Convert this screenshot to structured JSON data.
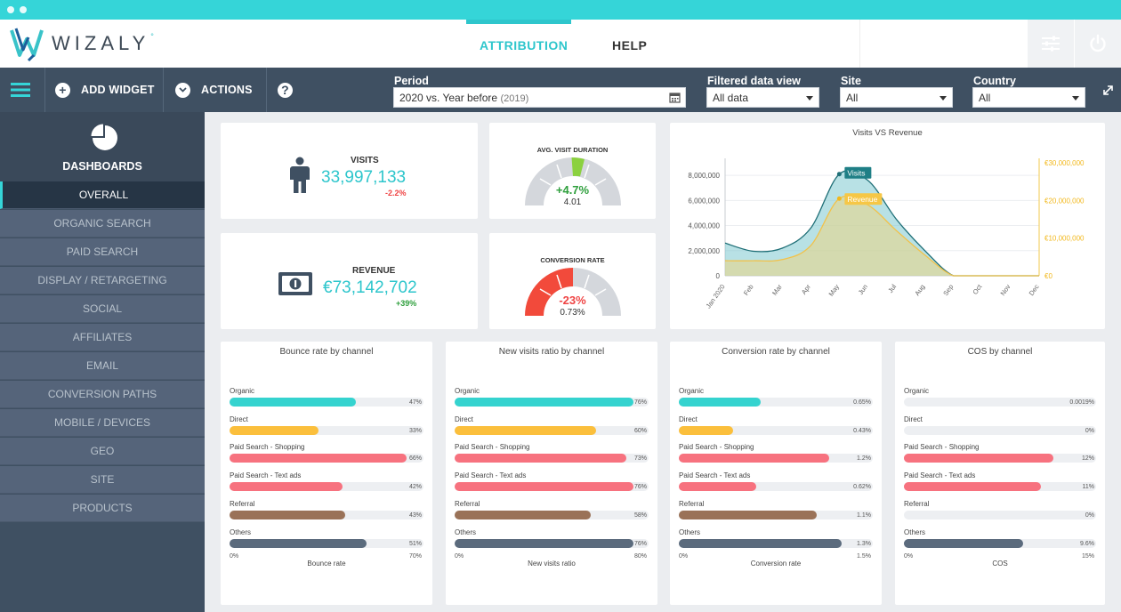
{
  "app": {
    "logo_text": "WIZALY",
    "logo_mark": "°"
  },
  "nav": {
    "items": [
      {
        "label": "ATTRIBUTION",
        "active": true
      },
      {
        "label": "HELP",
        "active": false
      }
    ]
  },
  "toolbar": {
    "add_widget": "ADD WIDGET",
    "actions": "ACTIONS"
  },
  "filters": {
    "period": {
      "label": "Period",
      "value": "2020 vs. Year before",
      "extra": "(2019)"
    },
    "data_view": {
      "label": "Filtered data view",
      "value": "All data"
    },
    "site": {
      "label": "Site",
      "value": "All"
    },
    "country": {
      "label": "Country",
      "value": "All"
    }
  },
  "sidebar": {
    "title": "DASHBOARDS",
    "items": [
      {
        "label": "OVERALL",
        "active": true
      },
      {
        "label": "ORGANIC SEARCH"
      },
      {
        "label": "PAID SEARCH"
      },
      {
        "label": "DISPLAY / RETARGETING"
      },
      {
        "label": "SOCIAL"
      },
      {
        "label": "AFFILIATES"
      },
      {
        "label": "EMAIL"
      },
      {
        "label": "CONVERSION PATHS"
      },
      {
        "label": "MOBILE / DEVICES"
      },
      {
        "label": "GEO"
      },
      {
        "label": "SITE"
      },
      {
        "label": "PRODUCTS"
      }
    ]
  },
  "kpis": {
    "visits": {
      "label": "VISITS",
      "value": "33,997,133",
      "delta": "-2.2%"
    },
    "revenue": {
      "label": "REVENUE",
      "value": "€73,142,702",
      "delta": "+39%"
    },
    "avg_visit_duration": {
      "title": "AVG. VISIT DURATION",
      "delta": "+4.7%",
      "value": "4.01"
    },
    "conversion_rate": {
      "title": "CONVERSION RATE",
      "delta": "-23%",
      "value": "0.73%"
    }
  },
  "colors": {
    "accent": "#2ec6cc",
    "positive": "#2e9f3c",
    "negative": "#ef4444",
    "organic": "#35d3cf",
    "direct": "#fbbf3c",
    "paid_shopping": "#f7727f",
    "paid_text": "#f7727f",
    "referral": "#9a7258",
    "others": "#5b6b7d",
    "revenue_line": "#f7c54a"
  },
  "chart_data": [
    {
      "type": "area",
      "title": "Visits VS Revenue",
      "categories": [
        "Jan 2020",
        "Feb",
        "Mar",
        "Apr",
        "May",
        "Jun",
        "Jul",
        "Aug",
        "Sep",
        "Oct",
        "Nov",
        "Dec"
      ],
      "y_ticks": [
        "0",
        "2,000,000",
        "4,000,000",
        "6,000,000",
        "8,000,000"
      ],
      "y2_ticks": [
        "€0",
        "€10,000,000",
        "€20,000,000",
        "€30,000,000"
      ],
      "ylim": [
        0,
        9000000
      ],
      "y2lim": [
        0,
        30000000
      ],
      "series": [
        {
          "name": "Visits",
          "axis": "left",
          "values": [
            2600000,
            1950000,
            2200000,
            3800000,
            8100000,
            7600000,
            4500000,
            2000000,
            0,
            0,
            0,
            0
          ]
        },
        {
          "name": "Revenue",
          "axis": "right",
          "values": [
            4000000,
            4000000,
            4300000,
            8000000,
            20500000,
            18800000,
            12000000,
            5500000,
            0,
            0,
            0,
            0
          ]
        }
      ]
    },
    {
      "type": "bar",
      "title": "Bounce rate by channel",
      "xlabel": "Bounce rate",
      "xlim": [
        0,
        70
      ],
      "axis_min_label": "0%",
      "axis_max_label": "70%",
      "categories": [
        "Organic",
        "Direct",
        "Paid Search - Shopping",
        "Paid Search - Text ads",
        "Referral",
        "Others"
      ],
      "values": [
        47,
        33,
        66,
        42,
        43,
        51
      ],
      "value_labels": [
        "47%",
        "33%",
        "66%",
        "42%",
        "43%",
        "51%"
      ]
    },
    {
      "type": "bar",
      "title": "New visits ratio by channel",
      "xlabel": "New visits ratio",
      "xlim": [
        0,
        80
      ],
      "axis_min_label": "0%",
      "axis_max_label": "80%",
      "categories": [
        "Organic",
        "Direct",
        "Paid Search - Shopping",
        "Paid Search - Text ads",
        "Referral",
        "Others"
      ],
      "values": [
        76,
        60,
        73,
        76,
        58,
        76
      ],
      "value_labels": [
        "76%",
        "60%",
        "73%",
        "76%",
        "58%",
        "76%"
      ]
    },
    {
      "type": "bar",
      "title": "Conversion rate by channel",
      "xlabel": "Conversion rate",
      "xlim": [
        0,
        1.5
      ],
      "axis_min_label": "0%",
      "axis_max_label": "1.5%",
      "categories": [
        "Organic",
        "Direct",
        "Paid Search - Shopping",
        "Paid Search - Text ads",
        "Referral",
        "Others"
      ],
      "values": [
        0.65,
        0.43,
        1.2,
        0.62,
        1.1,
        1.3
      ],
      "value_labels": [
        "0.65%",
        "0.43%",
        "1.2%",
        "0.62%",
        "1.1%",
        "1.3%"
      ]
    },
    {
      "type": "bar",
      "title": "COS by channel",
      "xlabel": "COS",
      "xlim": [
        0,
        15
      ],
      "axis_min_label": "0%",
      "axis_max_label": "15%",
      "categories": [
        "Organic",
        "Direct",
        "Paid Search - Shopping",
        "Paid Search - Text ads",
        "Referral",
        "Others"
      ],
      "values": [
        0.0019,
        0,
        12,
        11,
        0,
        9.6
      ],
      "value_labels": [
        "0.0019%",
        "0%",
        "12%",
        "11%",
        "0%",
        "9.6%"
      ]
    }
  ]
}
